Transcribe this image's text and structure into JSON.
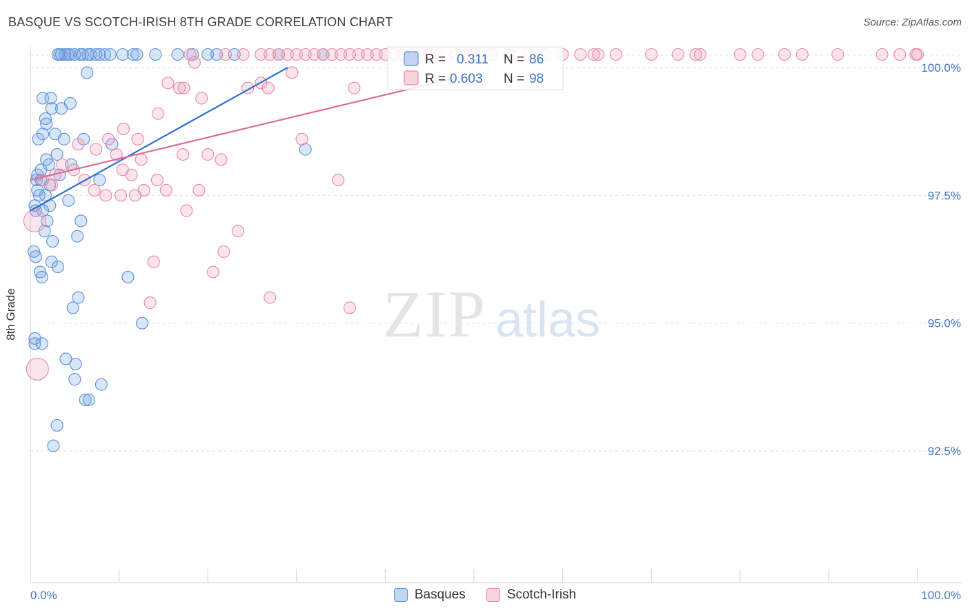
{
  "title": "BASQUE VS SCOTCH-IRISH 8TH GRADE CORRELATION CHART",
  "source": "Source: ZipAtlas.com",
  "watermark": {
    "zip": "ZIP",
    "atlas": "atlas"
  },
  "colors": {
    "blue": "#5b8fd8",
    "blue_fill": "rgba(120,165,230,0.28)",
    "blue_line": "#2e6fd1",
    "pink": "#e8879f",
    "pink_fill": "rgba(240,160,185,0.28)",
    "pink_line": "#e06a93",
    "axis_text": "#3b76c8"
  },
  "legend": {
    "r_label": "R =",
    "n_label": "N =",
    "rows": [
      {
        "series": "Basques",
        "r": "0.311",
        "n": "86"
      },
      {
        "series": "Scotch-Irish",
        "r": "0.603",
        "n": "98"
      }
    ]
  },
  "bottom_legend": [
    "Basques",
    "Scotch-Irish"
  ],
  "chart_data": {
    "type": "scatter",
    "title": "BASQUE VS SCOTCH-IRISH 8TH GRADE CORRELATION CHART",
    "xlabel": "",
    "ylabel": "8th Grade",
    "xlim": [
      0,
      100
    ],
    "ylim": [
      90.0,
      100.2
    ],
    "x_tick_labels": [
      "0.0%",
      "100.0%"
    ],
    "y_ticks": [
      100.0,
      97.5,
      95.0,
      92.5
    ],
    "y_tick_labels": [
      "100.0%",
      "97.5%",
      "95.0%",
      "92.5%"
    ],
    "grid": "horizontal dashed",
    "legend_position": "top-center",
    "series": [
      {
        "name": "Basques",
        "r": 0.311,
        "n": 86,
        "trend": [
          [
            0,
            97.2
          ],
          [
            29,
            100.0
          ]
        ],
        "points": [
          [
            3.3,
            100.2
          ],
          [
            3.5,
            100.2
          ],
          [
            4.2,
            100.2
          ],
          [
            4.5,
            100.2
          ],
          [
            5.0,
            100.2
          ],
          [
            5.6,
            100.2
          ],
          [
            5.9,
            100.2
          ],
          [
            6.8,
            100.2
          ],
          [
            7.4,
            100.2
          ],
          [
            7.8,
            100.2
          ],
          [
            8.4,
            100.2
          ],
          [
            10.4,
            100.2
          ],
          [
            11.6,
            100.2
          ],
          [
            12.0,
            100.2
          ],
          [
            14.1,
            100.2
          ],
          [
            16.6,
            100.2
          ],
          [
            18.3,
            100.2
          ],
          [
            21.0,
            100.2
          ],
          [
            23.0,
            100.2
          ],
          [
            28.0,
            100.2
          ],
          [
            33.0,
            100.2
          ],
          [
            6.4,
            99.9
          ],
          [
            1.4,
            99.4
          ],
          [
            2.3,
            99.4
          ],
          [
            4.5,
            99.3
          ],
          [
            2.4,
            99.2
          ],
          [
            3.5,
            99.2
          ],
          [
            1.7,
            99.0
          ],
          [
            1.8,
            98.9
          ],
          [
            1.4,
            98.7
          ],
          [
            2.8,
            98.7
          ],
          [
            3.8,
            98.6
          ],
          [
            0.9,
            98.6
          ],
          [
            6.0,
            98.6
          ],
          [
            9.2,
            98.5
          ],
          [
            3.0,
            98.3
          ],
          [
            1.8,
            98.2
          ],
          [
            2.1,
            98.1
          ],
          [
            4.6,
            98.1
          ],
          [
            1.2,
            98.0
          ],
          [
            0.8,
            97.9
          ],
          [
            3.3,
            97.9
          ],
          [
            0.7,
            97.8
          ],
          [
            1.2,
            97.8
          ],
          [
            7.8,
            97.8
          ],
          [
            2.2,
            97.7
          ],
          [
            0.8,
            97.6
          ],
          [
            1.7,
            97.5
          ],
          [
            4.3,
            97.4
          ],
          [
            0.5,
            97.3
          ],
          [
            2.2,
            97.3
          ],
          [
            1.4,
            97.2
          ],
          [
            0.6,
            97.2
          ],
          [
            1.9,
            97.0
          ],
          [
            5.7,
            97.0
          ],
          [
            1.6,
            96.8
          ],
          [
            5.3,
            96.7
          ],
          [
            2.5,
            96.6
          ],
          [
            0.4,
            96.4
          ],
          [
            0.6,
            96.3
          ],
          [
            2.4,
            96.2
          ],
          [
            3.1,
            96.1
          ],
          [
            1.1,
            96.0
          ],
          [
            1.3,
            95.9
          ],
          [
            11.0,
            95.9
          ],
          [
            5.4,
            95.5
          ],
          [
            4.8,
            95.3
          ],
          [
            12.6,
            95.0
          ],
          [
            0.5,
            94.6
          ],
          [
            1.3,
            94.6
          ],
          [
            4.0,
            94.3
          ],
          [
            5.1,
            94.2
          ],
          [
            5.0,
            93.9
          ],
          [
            8.0,
            93.8
          ],
          [
            6.2,
            93.5
          ],
          [
            6.6,
            93.5
          ],
          [
            3.0,
            93.0
          ],
          [
            2.6,
            92.6
          ],
          [
            31.0,
            98.4
          ],
          [
            20.0,
            100.2
          ],
          [
            9.0,
            100.2
          ],
          [
            3.9,
            100.2
          ],
          [
            6.5,
            100.2
          ],
          [
            3.1,
            100.2
          ],
          [
            1.0,
            97.5
          ],
          [
            0.5,
            94.7
          ]
        ]
      },
      {
        "name": "Scotch-Irish",
        "r": 0.603,
        "n": 98,
        "trend": [
          [
            0,
            97.8
          ],
          [
            48,
            99.8
          ]
        ],
        "points": [
          [
            18.0,
            100.2
          ],
          [
            22.0,
            100.2
          ],
          [
            24.0,
            100.2
          ],
          [
            26.0,
            100.2
          ],
          [
            27.0,
            100.2
          ],
          [
            28.0,
            100.2
          ],
          [
            29.0,
            100.2
          ],
          [
            30.0,
            100.2
          ],
          [
            31.0,
            100.2
          ],
          [
            32.0,
            100.2
          ],
          [
            33.0,
            100.2
          ],
          [
            34.0,
            100.2
          ],
          [
            35.0,
            100.2
          ],
          [
            36.0,
            100.2
          ],
          [
            37.0,
            100.2
          ],
          [
            38.0,
            100.2
          ],
          [
            39.0,
            100.2
          ],
          [
            40.0,
            100.2
          ],
          [
            41.0,
            100.2
          ],
          [
            42.0,
            100.2
          ],
          [
            43.0,
            100.2
          ],
          [
            45.0,
            100.2
          ],
          [
            46.0,
            100.2
          ],
          [
            48.0,
            100.2
          ],
          [
            50.0,
            100.2
          ],
          [
            52.0,
            100.2
          ],
          [
            54.0,
            100.2
          ],
          [
            56.0,
            100.2
          ],
          [
            58.0,
            100.2
          ],
          [
            60.0,
            100.2
          ],
          [
            62.0,
            100.2
          ],
          [
            64.0,
            100.2
          ],
          [
            66.0,
            100.2
          ],
          [
            70.0,
            100.2
          ],
          [
            73.0,
            100.2
          ],
          [
            75.5,
            100.2
          ],
          [
            80.0,
            100.2
          ],
          [
            82.0,
            100.2
          ],
          [
            87.0,
            100.2
          ],
          [
            91.0,
            100.2
          ],
          [
            96.0,
            100.2
          ],
          [
            98.0,
            100.2
          ],
          [
            100.0,
            100.2
          ],
          [
            99.8,
            100.2
          ],
          [
            85.0,
            100.2
          ],
          [
            75.0,
            100.2
          ],
          [
            63.5,
            100.2
          ],
          [
            49.0,
            100.2
          ],
          [
            44.0,
            100.2
          ],
          [
            18.5,
            100.1
          ],
          [
            29.5,
            99.9
          ],
          [
            26.0,
            99.7
          ],
          [
            24.5,
            99.6
          ],
          [
            15.5,
            99.7
          ],
          [
            16.8,
            99.6
          ],
          [
            17.3,
            99.6
          ],
          [
            36.5,
            99.6
          ],
          [
            26.8,
            99.6
          ],
          [
            19.3,
            99.4
          ],
          [
            14.4,
            99.1
          ],
          [
            10.5,
            98.8
          ],
          [
            12.1,
            98.6
          ],
          [
            8.8,
            98.6
          ],
          [
            5.4,
            98.5
          ],
          [
            9.7,
            98.3
          ],
          [
            17.2,
            98.3
          ],
          [
            20.0,
            98.3
          ],
          [
            21.5,
            98.2
          ],
          [
            7.4,
            98.4
          ],
          [
            12.5,
            98.2
          ],
          [
            30.6,
            98.6
          ],
          [
            3.6,
            98.1
          ],
          [
            4.9,
            98.0
          ],
          [
            10.4,
            98.0
          ],
          [
            2.8,
            97.9
          ],
          [
            6.1,
            97.8
          ],
          [
            11.4,
            97.9
          ],
          [
            14.3,
            97.8
          ],
          [
            2.4,
            97.7
          ],
          [
            12.8,
            97.6
          ],
          [
            15.3,
            97.6
          ],
          [
            7.2,
            97.6
          ],
          [
            10.2,
            97.5
          ],
          [
            8.5,
            97.5
          ],
          [
            19.0,
            97.6
          ],
          [
            11.8,
            97.5
          ],
          [
            34.7,
            97.8
          ],
          [
            17.6,
            97.2
          ],
          [
            23.4,
            96.8
          ],
          [
            21.8,
            96.4
          ],
          [
            13.9,
            96.2
          ],
          [
            20.6,
            96.0
          ],
          [
            27.0,
            95.5
          ],
          [
            13.5,
            95.4
          ],
          [
            36.0,
            95.3
          ],
          [
            0.5,
            97.0
          ],
          [
            0.8,
            94.1
          ],
          [
            1.4,
            97.8
          ]
        ]
      }
    ]
  }
}
